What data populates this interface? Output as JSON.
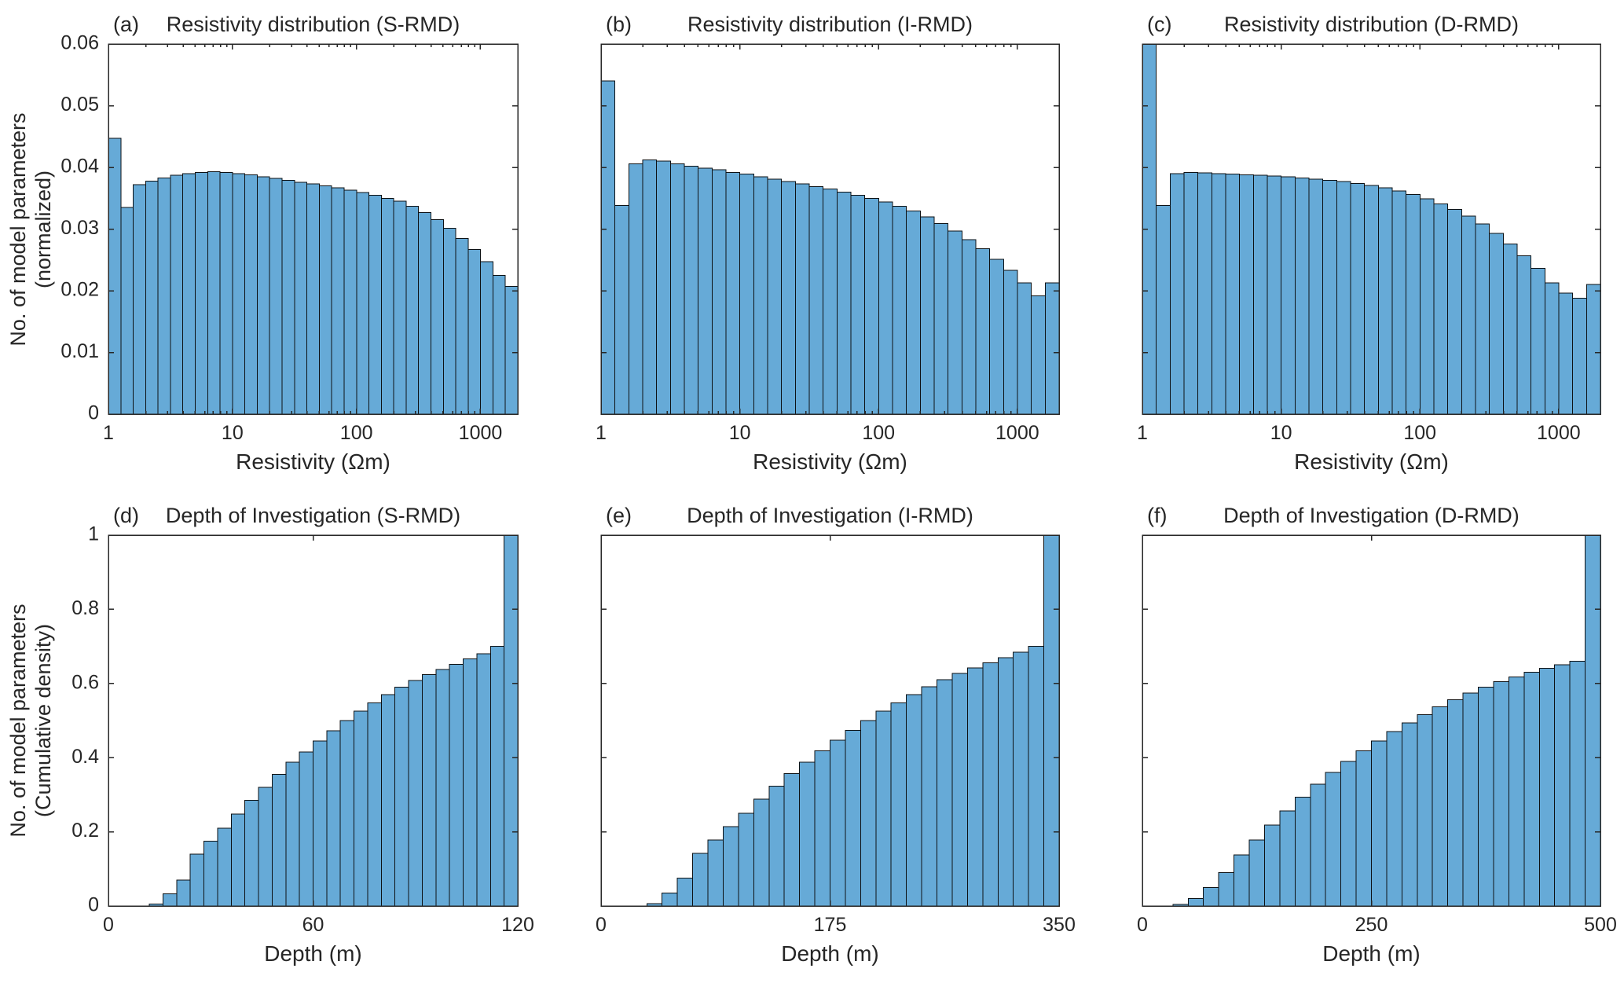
{
  "figure": {
    "background": "#ffffff",
    "bar_fill": "#66AAD7",
    "bar_edge": "#0d1114",
    "axis_color": "#262626",
    "text_color": "#262626"
  },
  "chart_data": [
    {
      "id": "a",
      "panel_label": "(a)",
      "title": "Resistivity distribution (S-RMD)",
      "type": "bar",
      "xscale": "log",
      "xlabel": "Resistivity (Ωm)",
      "ylabel_line1": "No. of model parameters",
      "ylabel_line2": "(normalized)",
      "xlim": [
        1,
        2000
      ],
      "ylim": [
        0,
        0.06
      ],
      "xticks": [
        1,
        10,
        100,
        1000
      ],
      "yticks": [
        0,
        0.01,
        0.02,
        0.03,
        0.04,
        0.05,
        0.06
      ],
      "show_yticklabels": true,
      "show_ylabel": true,
      "values": [
        0.0447,
        0.0335,
        0.0372,
        0.0378,
        0.0383,
        0.0387,
        0.039,
        0.0392,
        0.0393,
        0.0392,
        0.039,
        0.0388,
        0.0385,
        0.0382,
        0.0379,
        0.0376,
        0.0373,
        0.037,
        0.0367,
        0.0363,
        0.0359,
        0.0355,
        0.035,
        0.0345,
        0.0337,
        0.0327,
        0.0315,
        0.0301,
        0.0285,
        0.0267,
        0.0247,
        0.0225,
        0.0207
      ]
    },
    {
      "id": "b",
      "panel_label": "(b)",
      "title": "Resistivity distribution (I-RMD)",
      "type": "bar",
      "xscale": "log",
      "xlabel": "Resistivity (Ωm)",
      "xlim": [
        1,
        2000
      ],
      "ylim": [
        0,
        0.06
      ],
      "xticks": [
        1,
        10,
        100,
        1000
      ],
      "yticks": [
        0,
        0.01,
        0.02,
        0.03,
        0.04,
        0.05,
        0.06
      ],
      "show_yticklabels": false,
      "show_ylabel": false,
      "values": [
        0.054,
        0.0338,
        0.0406,
        0.0412,
        0.041,
        0.0406,
        0.0402,
        0.0399,
        0.0396,
        0.0392,
        0.0389,
        0.0385,
        0.0381,
        0.0377,
        0.0373,
        0.0369,
        0.0365,
        0.036,
        0.0355,
        0.035,
        0.0344,
        0.0337,
        0.0329,
        0.032,
        0.0309,
        0.0297,
        0.0283,
        0.0268,
        0.0251,
        0.0233,
        0.0213,
        0.0192,
        0.0213
      ]
    },
    {
      "id": "c",
      "panel_label": "(c)",
      "title": "Resistivity distribution (D-RMD)",
      "type": "bar",
      "xscale": "log",
      "xlabel": "Resistivity (Ωm)",
      "xlim": [
        1,
        2000
      ],
      "ylim": [
        0,
        0.06
      ],
      "xticks": [
        1,
        10,
        100,
        1000
      ],
      "yticks": [
        0,
        0.01,
        0.02,
        0.03,
        0.04,
        0.05,
        0.06
      ],
      "show_yticklabels": false,
      "show_ylabel": false,
      "values": [
        0.06,
        0.0338,
        0.039,
        0.0392,
        0.0391,
        0.039,
        0.0389,
        0.0388,
        0.0387,
        0.0386,
        0.0385,
        0.0383,
        0.0381,
        0.0379,
        0.0377,
        0.0374,
        0.0371,
        0.0367,
        0.0362,
        0.0356,
        0.0349,
        0.0341,
        0.0332,
        0.0321,
        0.0308,
        0.0293,
        0.0276,
        0.0257,
        0.0236,
        0.0213,
        0.0196,
        0.0188,
        0.021
      ]
    },
    {
      "id": "d",
      "panel_label": "(d)",
      "title": "Depth of Investigation (S-RMD)",
      "type": "bar",
      "xscale": "linear",
      "xlabel": "Depth (m)",
      "ylabel_line1": "No. of model parameters",
      "ylabel_line2": "(Cumulative density)",
      "xlim": [
        0,
        120
      ],
      "ylim": [
        0,
        1
      ],
      "xticks": [
        0,
        60,
        120
      ],
      "yticks": [
        0,
        0.2,
        0.4,
        0.6,
        0.8,
        1
      ],
      "show_yticklabels": true,
      "show_ylabel": true,
      "values": [
        0,
        0,
        0,
        0.005,
        0.033,
        0.07,
        0.14,
        0.175,
        0.21,
        0.248,
        0.285,
        0.32,
        0.355,
        0.388,
        0.415,
        0.445,
        0.472,
        0.5,
        0.525,
        0.548,
        0.57,
        0.59,
        0.608,
        0.624,
        0.638,
        0.652,
        0.666,
        0.68,
        0.7,
        1.0
      ]
    },
    {
      "id": "e",
      "panel_label": "(e)",
      "title": "Depth of Investigation (I-RMD)",
      "type": "bar",
      "xscale": "linear",
      "xlabel": "Depth (m)",
      "xlim": [
        0,
        350
      ],
      "ylim": [
        0,
        1
      ],
      "xticks": [
        0,
        175,
        350
      ],
      "yticks": [
        0,
        0.2,
        0.4,
        0.6,
        0.8,
        1
      ],
      "show_yticklabels": false,
      "show_ylabel": false,
      "values": [
        0,
        0,
        0,
        0.006,
        0.035,
        0.075,
        0.142,
        0.178,
        0.214,
        0.25,
        0.288,
        0.323,
        0.357,
        0.388,
        0.418,
        0.447,
        0.474,
        0.5,
        0.525,
        0.548,
        0.57,
        0.591,
        0.61,
        0.627,
        0.642,
        0.656,
        0.67,
        0.684,
        0.7,
        1.0
      ]
    },
    {
      "id": "f",
      "panel_label": "(f)",
      "title": "Depth of Investigation (D-RMD)",
      "type": "bar",
      "xscale": "linear",
      "xlabel": "Depth (m)",
      "xlim": [
        0,
        500
      ],
      "ylim": [
        0,
        1
      ],
      "xticks": [
        0,
        250,
        500
      ],
      "yticks": [
        0,
        0.2,
        0.4,
        0.6,
        0.8,
        1
      ],
      "show_yticklabels": false,
      "show_ylabel": false,
      "values": [
        0,
        0,
        0.004,
        0.02,
        0.05,
        0.09,
        0.138,
        0.178,
        0.218,
        0.256,
        0.293,
        0.328,
        0.36,
        0.39,
        0.418,
        0.445,
        0.47,
        0.494,
        0.516,
        0.537,
        0.556,
        0.574,
        0.59,
        0.605,
        0.618,
        0.63,
        0.641,
        0.65,
        0.66,
        1.0
      ]
    }
  ]
}
